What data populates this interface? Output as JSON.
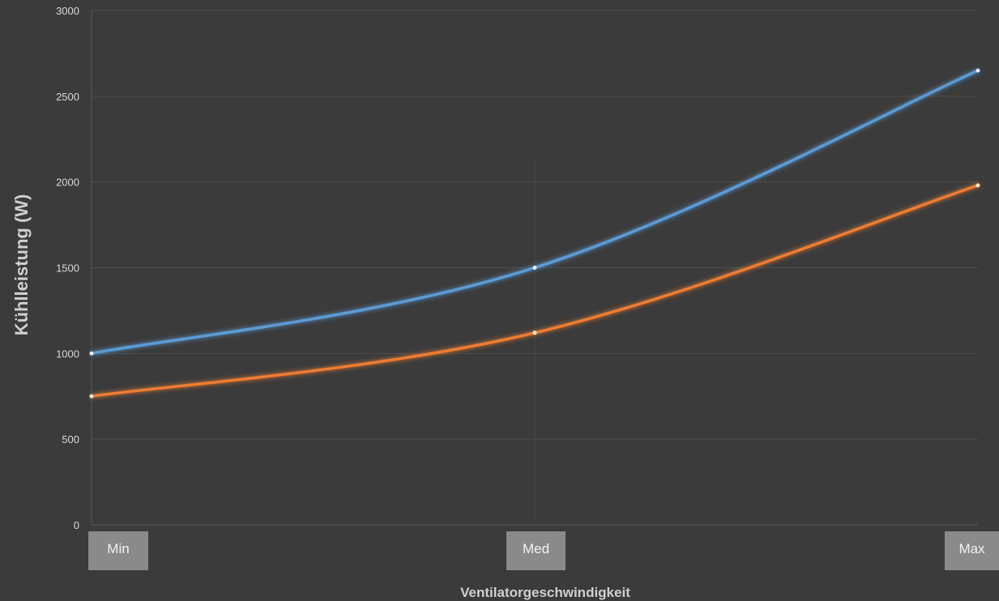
{
  "chart_data": {
    "type": "line",
    "categories": [
      "Min",
      "Med",
      "Max"
    ],
    "series": [
      {
        "values": [
          1000,
          1500,
          2650
        ],
        "color": "#5b9bd5"
      },
      {
        "values": [
          750,
          1120,
          1980
        ],
        "color": "#ed7d31"
      }
    ],
    "xlabel": "Ventilatorgeschwindigkeit",
    "ylabel": "Kühlleistung (W)",
    "ylim": [
      0,
      3000
    ],
    "yticks": [
      0,
      500,
      1000,
      1500,
      2000,
      2500,
      3000
    ],
    "grid": true,
    "smooth": true,
    "legend": "none"
  },
  "colors": {
    "background": "#3b3b3b",
    "grid": "#4e4e4e",
    "category_box": "#8a8a8a"
  }
}
